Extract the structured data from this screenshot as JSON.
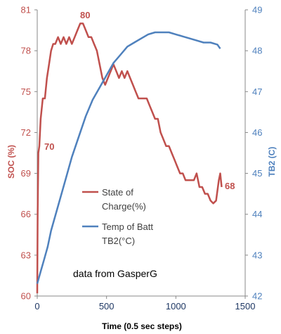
{
  "chart_data": {
    "type": "line",
    "xlabel": "Time (0.5 sec steps)",
    "ylabel_left": "SOC (%)",
    "ylabel_right": "TB2 (C)",
    "xlim": [
      0,
      1500
    ],
    "ylim_left": [
      60,
      81
    ],
    "ylim_right": [
      42,
      49
    ],
    "x_ticks": [
      "0",
      "500",
      "1000",
      "1500"
    ],
    "y_left_ticks": [
      "60",
      "63",
      "66",
      "69",
      "72",
      "75",
      "78",
      "81"
    ],
    "y_right_ticks": [
      "42",
      "43",
      "44",
      "45",
      "46",
      "47",
      "48",
      "49"
    ],
    "grid": false,
    "legend_position": "center-left",
    "colors": {
      "soc": "#C0504D",
      "temp": "#4F81BD",
      "axis": "#888888"
    },
    "series": [
      {
        "name": "State of Charge(%)",
        "legend_lines": [
          "State of",
          "Charge(%)"
        ],
        "axis": "left",
        "x": [
          0,
          3,
          8,
          15,
          25,
          40,
          55,
          70,
          85,
          100,
          115,
          130,
          150,
          170,
          190,
          210,
          230,
          250,
          270,
          290,
          310,
          330,
          350,
          370,
          390,
          410,
          430,
          450,
          470,
          490,
          510,
          530,
          550,
          570,
          590,
          610,
          630,
          650,
          670,
          690,
          710,
          730,
          750,
          770,
          790,
          810,
          830,
          850,
          870,
          890,
          910,
          930,
          950,
          970,
          990,
          1010,
          1030,
          1050,
          1070,
          1090,
          1110,
          1130,
          1150,
          1170,
          1190,
          1210,
          1230,
          1250,
          1270,
          1290,
          1310,
          1320,
          1330
        ],
        "values": [
          60.2,
          66.0,
          70.5,
          71.0,
          73.0,
          74.5,
          74.5,
          76.0,
          77.0,
          78.0,
          78.5,
          78.5,
          79.0,
          78.5,
          79.0,
          78.5,
          79.0,
          78.5,
          79.0,
          79.5,
          80.0,
          80.0,
          79.5,
          79.0,
          79.0,
          78.5,
          78.0,
          77.0,
          76.0,
          75.5,
          76.0,
          76.5,
          77.0,
          76.5,
          76.0,
          76.5,
          76.0,
          76.5,
          76.0,
          75.5,
          75.0,
          74.5,
          74.5,
          74.5,
          74.5,
          74.0,
          73.5,
          73.0,
          73.0,
          72.0,
          71.5,
          71.0,
          71.0,
          70.5,
          70.0,
          69.5,
          69.0,
          69.0,
          68.5,
          68.5,
          68.5,
          68.5,
          69.0,
          68.0,
          68.0,
          67.5,
          67.5,
          67.0,
          66.8,
          67.0,
          68.5,
          69.0,
          68.0
        ]
      },
      {
        "name": "Temp of Batt TB2(°C)",
        "legend_lines": [
          "Temp of Batt",
          "TB2(°C)"
        ],
        "axis": "right",
        "x": [
          0,
          25,
          50,
          75,
          100,
          150,
          200,
          250,
          300,
          350,
          400,
          450,
          500,
          550,
          600,
          650,
          700,
          750,
          800,
          850,
          900,
          950,
          1000,
          1050,
          1100,
          1150,
          1200,
          1250,
          1300,
          1320
        ],
        "values": [
          42.3,
          42.6,
          42.9,
          43.2,
          43.6,
          44.2,
          44.8,
          45.4,
          45.9,
          46.4,
          46.8,
          47.1,
          47.4,
          47.7,
          47.9,
          48.1,
          48.2,
          48.3,
          48.4,
          48.45,
          48.45,
          48.45,
          48.4,
          48.35,
          48.3,
          48.25,
          48.2,
          48.2,
          48.15,
          48.05
        ]
      }
    ],
    "annotations": [
      "70",
      "80",
      "68"
    ]
  },
  "credit": "data from GasperG"
}
